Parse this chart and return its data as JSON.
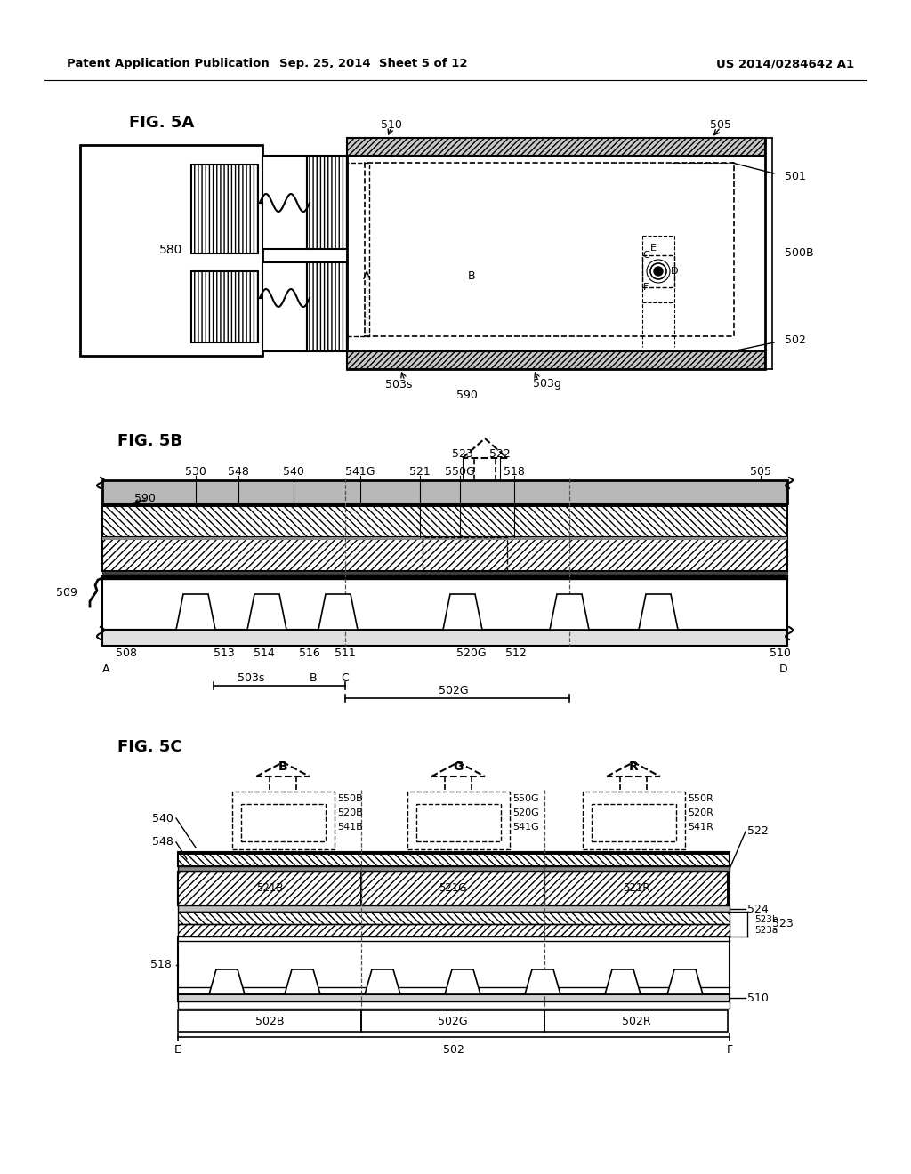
{
  "page_title_left": "Patent Application Publication",
  "page_title_mid": "Sep. 25, 2014  Sheet 5 of 12",
  "page_title_right": "US 2014/0284642 A1",
  "bg_color": "#ffffff",
  "line_color": "#000000"
}
